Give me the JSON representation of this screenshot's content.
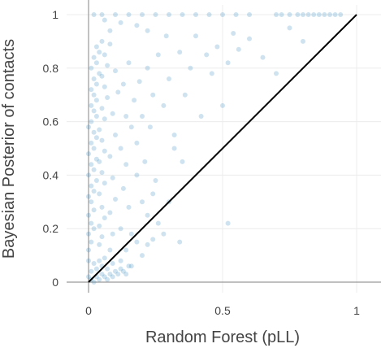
{
  "chart_data": {
    "type": "scatter",
    "title": "",
    "xlabel": "Random Forest (pLL)",
    "ylabel": "Bayesian Posterior of contacts",
    "xlim": [
      -0.08,
      1.09
    ],
    "ylim": [
      0,
      1.02
    ],
    "x_ticks": [
      {
        "value": 0,
        "label": "0"
      },
      {
        "value": 0.5,
        "label": "0.5"
      },
      {
        "value": 1,
        "label": "1"
      }
    ],
    "y_ticks": [
      {
        "value": 0,
        "label": "0"
      },
      {
        "value": 0.2,
        "label": "0.2"
      },
      {
        "value": 0.4,
        "label": "0.4"
      },
      {
        "value": 0.6,
        "label": "0.6"
      },
      {
        "value": 0.8,
        "label": "0.8"
      },
      {
        "value": 1,
        "label": "1"
      }
    ],
    "grid": true,
    "point_color": "#1f7fb4",
    "reference_line": {
      "from": [
        0,
        0
      ],
      "to": [
        1,
        1
      ],
      "color": "#000000"
    },
    "series": [
      {
        "points": [
          [
            0.0,
            0.02
          ],
          [
            0.01,
            0.01
          ],
          [
            0.02,
            0.0
          ],
          [
            0.03,
            0.02
          ],
          [
            0.04,
            0.01
          ],
          [
            0.05,
            0.03
          ],
          [
            0.06,
            0.02
          ],
          [
            0.07,
            0.01
          ],
          [
            0.08,
            0.03
          ],
          [
            0.09,
            0.02
          ],
          [
            0.1,
            0.04
          ],
          [
            0.11,
            0.03
          ],
          [
            0.12,
            0.05
          ],
          [
            0.13,
            0.04
          ],
          [
            0.14,
            0.03
          ],
          [
            0.15,
            0.06
          ],
          [
            0.01,
            0.04
          ],
          [
            0.03,
            0.05
          ],
          [
            0.05,
            0.06
          ],
          [
            0.07,
            0.05
          ],
          [
            0.09,
            0.07
          ],
          [
            0.02,
            0.07
          ],
          [
            0.04,
            0.08
          ],
          [
            0.06,
            0.09
          ],
          [
            0.0,
            0.08
          ],
          [
            0.0,
            0.12
          ],
          [
            0.01,
            0.15
          ],
          [
            0.0,
            0.18
          ],
          [
            0.02,
            0.2
          ],
          [
            0.01,
            0.22
          ],
          [
            0.0,
            0.25
          ],
          [
            0.02,
            0.27
          ],
          [
            0.01,
            0.3
          ],
          [
            0.0,
            0.32
          ],
          [
            0.02,
            0.34
          ],
          [
            0.01,
            0.36
          ],
          [
            0.03,
            0.38
          ],
          [
            0.0,
            0.4
          ],
          [
            0.02,
            0.42
          ],
          [
            0.01,
            0.44
          ],
          [
            0.03,
            0.46
          ],
          [
            0.0,
            0.48
          ],
          [
            0.02,
            0.5
          ],
          [
            0.01,
            0.52
          ],
          [
            0.03,
            0.54
          ],
          [
            0.02,
            0.56
          ],
          [
            0.0,
            0.58
          ],
          [
            0.01,
            0.6
          ],
          [
            0.03,
            0.62
          ],
          [
            0.02,
            0.64
          ],
          [
            0.01,
            0.66
          ],
          [
            0.03,
            0.68
          ],
          [
            0.02,
            0.7
          ],
          [
            0.01,
            0.72
          ],
          [
            0.03,
            0.74
          ],
          [
            0.02,
            0.76
          ],
          [
            0.04,
            0.78
          ],
          [
            0.01,
            0.8
          ],
          [
            0.03,
            0.82
          ],
          [
            0.02,
            0.84
          ],
          [
            0.04,
            0.86
          ],
          [
            0.03,
            0.88
          ],
          [
            0.05,
            0.9
          ],
          [
            0.04,
            0.14
          ],
          [
            0.05,
            0.17
          ],
          [
            0.04,
            0.21
          ],
          [
            0.06,
            0.24
          ],
          [
            0.05,
            0.28
          ],
          [
            0.04,
            0.33
          ],
          [
            0.06,
            0.37
          ],
          [
            0.05,
            0.41
          ],
          [
            0.04,
            0.45
          ],
          [
            0.06,
            0.49
          ],
          [
            0.05,
            0.53
          ],
          [
            0.04,
            0.57
          ],
          [
            0.06,
            0.61
          ],
          [
            0.05,
            0.65
          ],
          [
            0.07,
            0.69
          ],
          [
            0.06,
            0.73
          ],
          [
            0.05,
            0.77
          ],
          [
            0.07,
            0.81
          ],
          [
            0.06,
            0.85
          ],
          [
            0.08,
            0.89
          ],
          [
            0.08,
            0.12
          ],
          [
            0.09,
            0.18
          ],
          [
            0.08,
            0.26
          ],
          [
            0.1,
            0.31
          ],
          [
            0.09,
            0.39
          ],
          [
            0.08,
            0.47
          ],
          [
            0.1,
            0.55
          ],
          [
            0.09,
            0.63
          ],
          [
            0.11,
            0.71
          ],
          [
            0.1,
            0.79
          ],
          [
            0.12,
            0.2
          ],
          [
            0.13,
            0.35
          ],
          [
            0.12,
            0.5
          ],
          [
            0.14,
            0.62
          ],
          [
            0.13,
            0.74
          ],
          [
            0.15,
            0.82
          ],
          [
            0.14,
            0.44
          ],
          [
            0.16,
            0.58
          ],
          [
            0.15,
            0.28
          ],
          [
            0.17,
            0.68
          ],
          [
            0.18,
            0.52
          ],
          [
            0.2,
            0.62
          ],
          [
            0.19,
            0.75
          ],
          [
            0.22,
            0.8
          ],
          [
            0.21,
            0.45
          ],
          [
            0.24,
            0.7
          ],
          [
            0.23,
            0.58
          ],
          [
            0.26,
            0.85
          ],
          [
            0.25,
            0.38
          ],
          [
            0.28,
            0.66
          ],
          [
            0.3,
            0.76
          ],
          [
            0.29,
            0.92
          ],
          [
            0.32,
            0.55
          ],
          [
            0.34,
            0.86
          ],
          [
            0.36,
            0.7
          ],
          [
            0.38,
            0.8
          ],
          [
            0.4,
            0.92
          ],
          [
            0.42,
            0.62
          ],
          [
            0.44,
            0.85
          ],
          [
            0.46,
            0.78
          ],
          [
            0.48,
            0.88
          ],
          [
            0.5,
            0.66
          ],
          [
            0.52,
            0.82
          ],
          [
            0.54,
            0.93
          ],
          [
            0.56,
            0.87
          ],
          [
            0.6,
            0.91
          ],
          [
            0.65,
            0.84
          ],
          [
            0.7,
            0.78
          ],
          [
            0.75,
            0.95
          ],
          [
            0.8,
            0.9
          ],
          [
            0.18,
            0.4
          ],
          [
            0.2,
            0.3
          ],
          [
            0.22,
            0.25
          ],
          [
            0.24,
            0.33
          ],
          [
            0.26,
            0.22
          ],
          [
            0.28,
            0.18
          ],
          [
            0.3,
            0.3
          ],
          [
            0.32,
            0.5
          ],
          [
            0.35,
            0.45
          ],
          [
            0.52,
            0.22
          ],
          [
            0.14,
            0.12
          ],
          [
            0.16,
            0.18
          ],
          [
            0.18,
            0.15
          ],
          [
            0.2,
            0.1
          ],
          [
            0.22,
            0.14
          ],
          [
            0.12,
            0.08
          ],
          [
            0.16,
            0.06
          ],
          [
            0.24,
            0.16
          ],
          [
            0.34,
            0.15
          ],
          [
            0.02,
            1.0
          ],
          [
            0.05,
            1.0
          ],
          [
            0.1,
            1.0
          ],
          [
            0.15,
            1.0
          ],
          [
            0.2,
            1.0
          ],
          [
            0.25,
            1.0
          ],
          [
            0.3,
            1.0
          ],
          [
            0.35,
            1.0
          ],
          [
            0.4,
            1.0
          ],
          [
            0.45,
            1.0
          ],
          [
            0.5,
            1.0
          ],
          [
            0.55,
            1.0
          ],
          [
            0.6,
            1.0
          ],
          [
            0.7,
            1.0
          ],
          [
            0.72,
            1.0
          ],
          [
            0.75,
            1.0
          ],
          [
            0.78,
            1.0
          ],
          [
            0.8,
            1.0
          ],
          [
            0.82,
            1.0
          ],
          [
            0.84,
            1.0
          ],
          [
            0.86,
            1.0
          ],
          [
            0.88,
            1.0
          ],
          [
            0.9,
            1.0
          ],
          [
            0.92,
            1.0
          ],
          [
            0.94,
            1.0
          ],
          [
            0.22,
            0.94
          ],
          [
            0.18,
            0.96
          ],
          [
            0.12,
            0.97
          ],
          [
            0.08,
            0.94
          ],
          [
            0.06,
            0.98
          ]
        ]
      }
    ]
  }
}
